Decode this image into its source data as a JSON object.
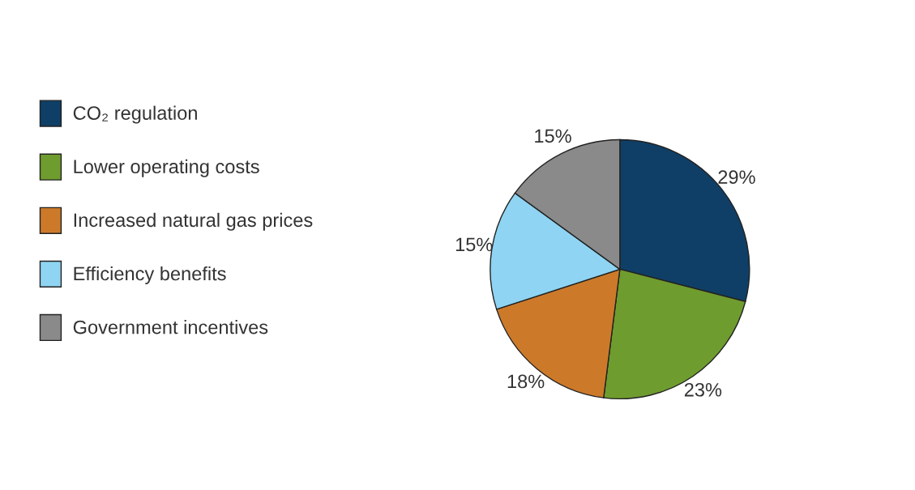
{
  "chart_data": {
    "type": "pie",
    "categories": [
      "CO₂ regulation",
      "Lower operating costs",
      "Increased natural gas prices",
      "Efficiency benefits",
      "Government incentives"
    ],
    "values": [
      29,
      23,
      18,
      15,
      15
    ],
    "colors": [
      "#0f3f66",
      "#6f9c2e",
      "#cc7a2a",
      "#8fd4f2",
      "#8a8a8a"
    ],
    "value_labels": [
      "29%",
      "23%",
      "18%",
      "15%",
      "15%"
    ],
    "legend": "left"
  }
}
